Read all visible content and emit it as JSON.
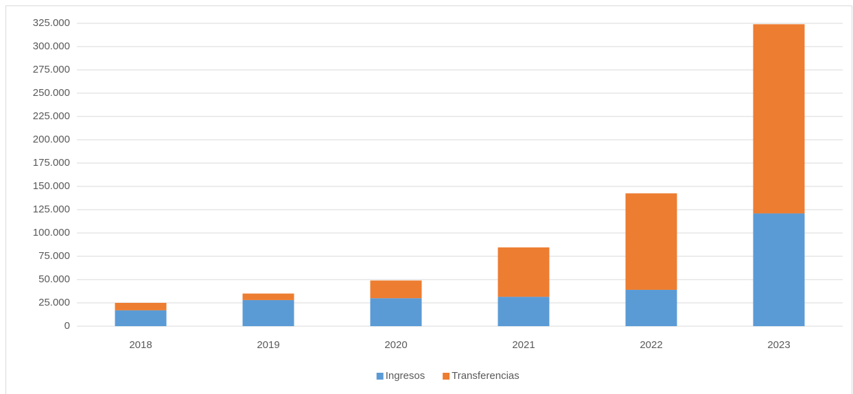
{
  "chart_data": {
    "type": "stacked_bar",
    "categories": [
      "2018",
      "2019",
      "2020",
      "2021",
      "2022",
      "2023"
    ],
    "series": [
      {
        "name": "Ingresos",
        "color": "#5b9bd5",
        "values": [
          17000,
          28000,
          30000,
          31500,
          39000,
          121000
        ]
      },
      {
        "name": "Transferencias",
        "color": "#ed7d31",
        "values": [
          8000,
          7000,
          19000,
          53000,
          103500,
          203000
        ]
      }
    ],
    "ylim": [
      0,
      325000
    ],
    "yticks": [
      0,
      {
        "value": 25000,
        "label": "25.000"
      },
      {
        "value": 50000,
        "label": "50.000"
      },
      {
        "value": 75000,
        "label": "75.000"
      },
      {
        "value": 100000,
        "label": "100.000"
      },
      {
        "value": 125000,
        "label": "125.000"
      },
      {
        "value": 150000,
        "label": "150.000"
      },
      {
        "value": 175000,
        "label": "175.000"
      },
      {
        "value": 200000,
        "label": "200.000"
      },
      {
        "value": 225000,
        "label": "225.000"
      },
      {
        "value": 250000,
        "label": "250.000"
      },
      {
        "value": 275000,
        "label": "275.000"
      },
      {
        "value": 300000,
        "label": "300.000"
      },
      {
        "value": 325000,
        "label": "325.000"
      }
    ],
    "grid": true,
    "legend": "bottom"
  }
}
